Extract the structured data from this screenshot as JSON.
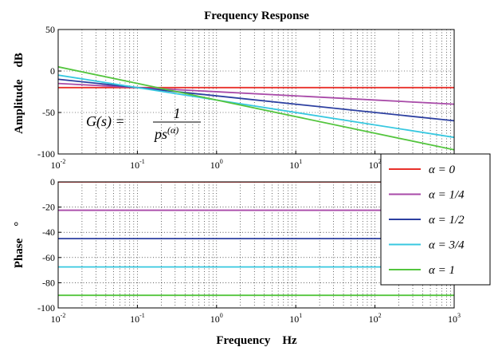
{
  "chart_data": {
    "type": "line",
    "title": "Frequency Response",
    "xlabel": "Frequency    Hz",
    "x_scale": "log",
    "xlim": [
      0.01,
      1000
    ],
    "x_ticks": [
      {
        "base": "10",
        "exp": "-2"
      },
      {
        "base": "10",
        "exp": "-1"
      },
      {
        "base": "10",
        "exp": "0"
      },
      {
        "base": "10",
        "exp": "1"
      },
      {
        "base": "10",
        "exp": "2"
      },
      {
        "base": "10",
        "exp": "3"
      }
    ],
    "x_tick_values": [
      0.01,
      0.1,
      1,
      10,
      100,
      1000
    ],
    "grid": "dotted",
    "formula": {
      "lhs": "G(s) =",
      "numerator": "1",
      "denominator": "ps",
      "exponent": "(α)"
    },
    "legend": {
      "placement": "right",
      "entries": [
        {
          "label": "α = 0",
          "color": "#e8312b"
        },
        {
          "label": "α = 1/4",
          "color": "#a84aa8"
        },
        {
          "label": "α = 1/2",
          "color": "#2c3fa0"
        },
        {
          "label": "α = 3/4",
          "color": "#38c8e0"
        },
        {
          "label": "α = 1",
          "color": "#54c53e"
        }
      ]
    },
    "subplots": [
      {
        "name": "amplitude",
        "ylabel": "Amplitude    dB",
        "ylim": [
          -100,
          50
        ],
        "y_ticks": [
          "50",
          "0",
          "-50",
          "-100"
        ],
        "y_tick_values": [
          50,
          0,
          -50,
          -100
        ],
        "series": [
          {
            "color": "#e8312b",
            "x": [
              0.01,
              1000
            ],
            "y": [
              -20,
              -20
            ]
          },
          {
            "color": "#a84aa8",
            "x": [
              0.01,
              1000
            ],
            "y": [
              -15,
              -40
            ]
          },
          {
            "color": "#2c3fa0",
            "x": [
              0.01,
              1000
            ],
            "y": [
              -10,
              -60
            ]
          },
          {
            "color": "#38c8e0",
            "x": [
              0.01,
              1000
            ],
            "y": [
              -5,
              -80
            ]
          },
          {
            "color": "#54c53e",
            "x": [
              0.01,
              1000
            ],
            "y": [
              5,
              -95
            ]
          }
        ]
      },
      {
        "name": "phase",
        "ylabel": "Phase    °",
        "ylim": [
          -100,
          0
        ],
        "y_ticks": [
          "0",
          "-20",
          "-40",
          "-60",
          "-80",
          "-100"
        ],
        "y_tick_values": [
          0,
          -20,
          -40,
          -60,
          -80,
          -100
        ],
        "series": [
          {
            "color": "#e8312b",
            "x": [
              0.01,
              1000
            ],
            "y": [
              0,
              0
            ]
          },
          {
            "color": "#a84aa8",
            "x": [
              0.01,
              1000
            ],
            "y": [
              -22.5,
              -22.5
            ]
          },
          {
            "color": "#2c3fa0",
            "x": [
              0.01,
              1000
            ],
            "y": [
              -45,
              -45
            ]
          },
          {
            "color": "#38c8e0",
            "x": [
              0.01,
              1000
            ],
            "y": [
              -67.5,
              -67.5
            ]
          },
          {
            "color": "#54c53e",
            "x": [
              0.01,
              1000
            ],
            "y": [
              -90,
              -90
            ]
          }
        ]
      }
    ]
  }
}
